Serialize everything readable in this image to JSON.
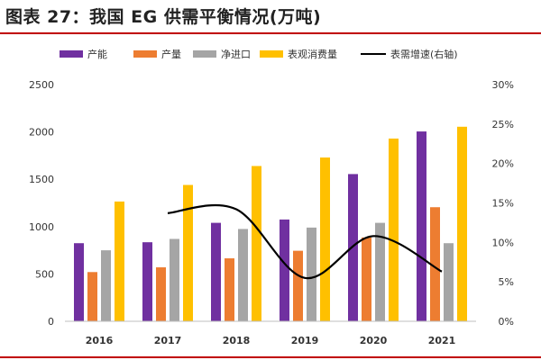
{
  "title": "图表 27：我国 EG 供需平衡情况(万吨)",
  "chart_data": {
    "type": "bar",
    "title": "图表 27：我国 EG 供需平衡情况(万吨)",
    "categories": [
      "2016",
      "2017",
      "2018",
      "2019",
      "2020",
      "2021"
    ],
    "series": [
      {
        "name": "产能",
        "type": "bar",
        "axis": "left",
        "color": "#7030a0",
        "values": [
          825,
          835,
          1040,
          1075,
          1555,
          2005
        ]
      },
      {
        "name": "产量",
        "type": "bar",
        "axis": "left",
        "color": "#ed7d31",
        "values": [
          520,
          570,
          665,
          745,
          885,
          1205
        ]
      },
      {
        "name": "净进口",
        "type": "bar",
        "axis": "left",
        "color": "#a5a5a5",
        "values": [
          750,
          870,
          975,
          990,
          1040,
          825
        ]
      },
      {
        "name": "表观消费量",
        "type": "bar",
        "axis": "left",
        "color": "#ffc000",
        "values": [
          1265,
          1440,
          1640,
          1730,
          1930,
          2055
        ]
      },
      {
        "name": "表需增速(右轴)",
        "type": "line",
        "axis": "right",
        "color": "#000000",
        "values": [
          null,
          13.7,
          14.2,
          5.5,
          10.8,
          6.3
        ]
      }
    ],
    "y_left": {
      "min": 0,
      "max": 2500,
      "ticks": [
        "0",
        "500",
        "1000",
        "1500",
        "2000",
        "2500"
      ]
    },
    "y_right": {
      "min": 0,
      "max": 30,
      "ticks": [
        "0%",
        "5%",
        "10%",
        "15%",
        "20%",
        "25%",
        "30%"
      ]
    },
    "legend": "top",
    "grid": false
  }
}
